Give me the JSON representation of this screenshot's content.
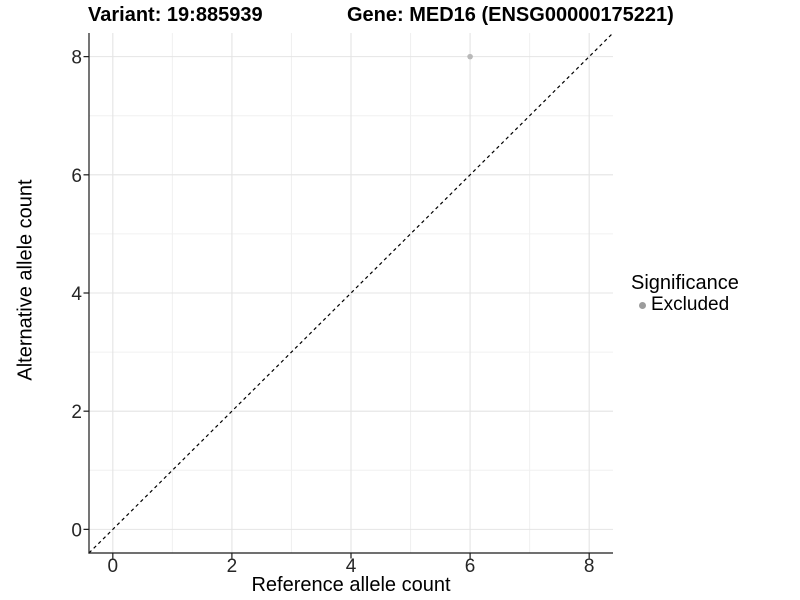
{
  "chart_data": {
    "type": "scatter",
    "title_left": "Variant: 19:885939",
    "title_right": "Gene: MED16 (ENSG00000175221)",
    "xlabel": "Reference allele count",
    "ylabel": "Alternative allele count",
    "xlim": [
      -0.4,
      8.4
    ],
    "ylim": [
      -0.4,
      8.4
    ],
    "x_major_ticks": [
      0,
      2,
      4,
      6,
      8
    ],
    "y_major_ticks": [
      0,
      2,
      4,
      6,
      8
    ],
    "x_minor_gridlines": [
      1,
      3,
      5,
      7
    ],
    "y_minor_gridlines": [
      1,
      3,
      5,
      7
    ],
    "grid": "major+minor",
    "points": [
      {
        "x": 6,
        "y": 8,
        "series": "Excluded"
      }
    ],
    "identity_line": {
      "style": "dashed",
      "from": [
        -0.4,
        -0.4
      ],
      "to": [
        8.4,
        8.4
      ]
    },
    "legend": {
      "title": "Significance",
      "position": "right",
      "items": [
        {
          "label": "Excluded",
          "color": "#9c9c9c"
        }
      ]
    }
  },
  "colors": {
    "background": "#ffffff",
    "grid_major": "#e4e4e4",
    "grid_minor": "#f0f0f0",
    "axis_line": "#1a1a1a",
    "tick_text": "#262626",
    "title_text": "#000000",
    "point_fill": "#b9b9b9",
    "identity_line": "#000000"
  }
}
